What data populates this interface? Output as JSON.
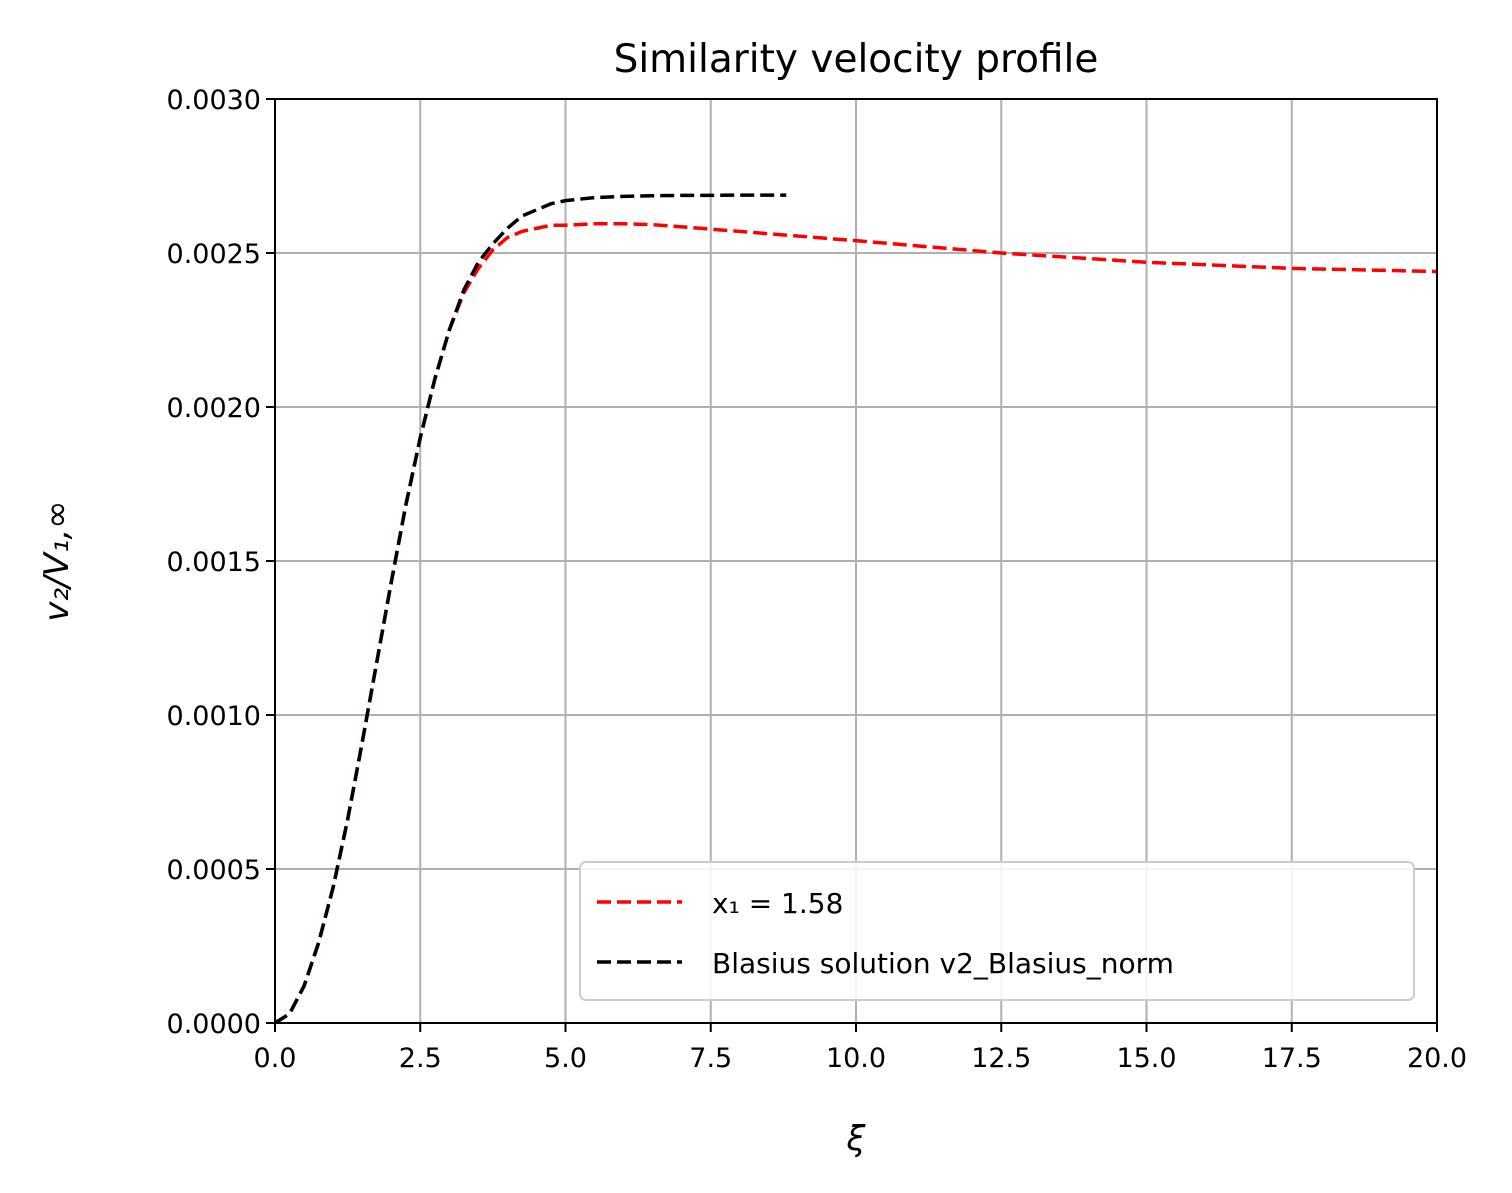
{
  "chart_data": {
    "type": "line",
    "title": "Similarity velocity profile",
    "xlabel": "ξ",
    "ylabel": "v₂/V₁,∞",
    "xlim": [
      0,
      20
    ],
    "ylim": [
      0,
      0.003
    ],
    "xticks": [
      "0.0",
      "2.5",
      "5.0",
      "7.5",
      "10.0",
      "12.5",
      "15.0",
      "17.5",
      "20.0"
    ],
    "yticks": [
      "0.0000",
      "0.0005",
      "0.0010",
      "0.0015",
      "0.0020",
      "0.0025",
      "0.0030"
    ],
    "grid": true,
    "legend_position": "lower-right",
    "series": [
      {
        "name": "x₁ = 1.58",
        "color": "#ff0000",
        "style": "dashed",
        "x": [
          0.0,
          0.25,
          0.5,
          0.75,
          1.0,
          1.25,
          1.5,
          1.75,
          2.0,
          2.25,
          2.5,
          2.75,
          3.0,
          3.25,
          3.5,
          3.75,
          4.0,
          4.25,
          4.5,
          4.75,
          5.0,
          5.5,
          6.0,
          6.5,
          7.0,
          8.0,
          9.0,
          10.0,
          12.5,
          15.0,
          17.5,
          20.0
        ],
        "y": [
          0.0,
          3e-05,
          0.00012,
          0.00026,
          0.00044,
          0.00066,
          0.00091,
          0.00117,
          0.00143,
          0.00168,
          0.0019,
          0.00209,
          0.00225,
          0.00237,
          0.00245,
          0.00251,
          0.00255,
          0.00257,
          0.00258,
          0.00259,
          0.00259,
          0.002595,
          0.002595,
          0.002592,
          0.002585,
          0.00257,
          0.002555,
          0.00254,
          0.0025,
          0.00247,
          0.00245,
          0.00244
        ]
      },
      {
        "name": "Blasius solution v2_Blasius_norm",
        "color": "#000000",
        "style": "dashed",
        "x": [
          0.0,
          0.25,
          0.5,
          0.75,
          1.0,
          1.25,
          1.5,
          1.75,
          2.0,
          2.25,
          2.5,
          2.75,
          3.0,
          3.25,
          3.5,
          3.75,
          4.0,
          4.25,
          4.5,
          4.75,
          5.0,
          5.5,
          6.0,
          6.5,
          7.0,
          7.5,
          8.0,
          8.5,
          8.8
        ],
        "y": [
          0.0,
          3e-05,
          0.00012,
          0.00026,
          0.00044,
          0.00066,
          0.00091,
          0.00117,
          0.00143,
          0.00168,
          0.0019,
          0.00209,
          0.00225,
          0.00238,
          0.00247,
          0.00253,
          0.00258,
          0.00262,
          0.00264,
          0.00266,
          0.00267,
          0.00268,
          0.002684,
          0.002686,
          0.002687,
          0.002687,
          0.002688,
          0.002688,
          0.002688
        ]
      }
    ]
  }
}
